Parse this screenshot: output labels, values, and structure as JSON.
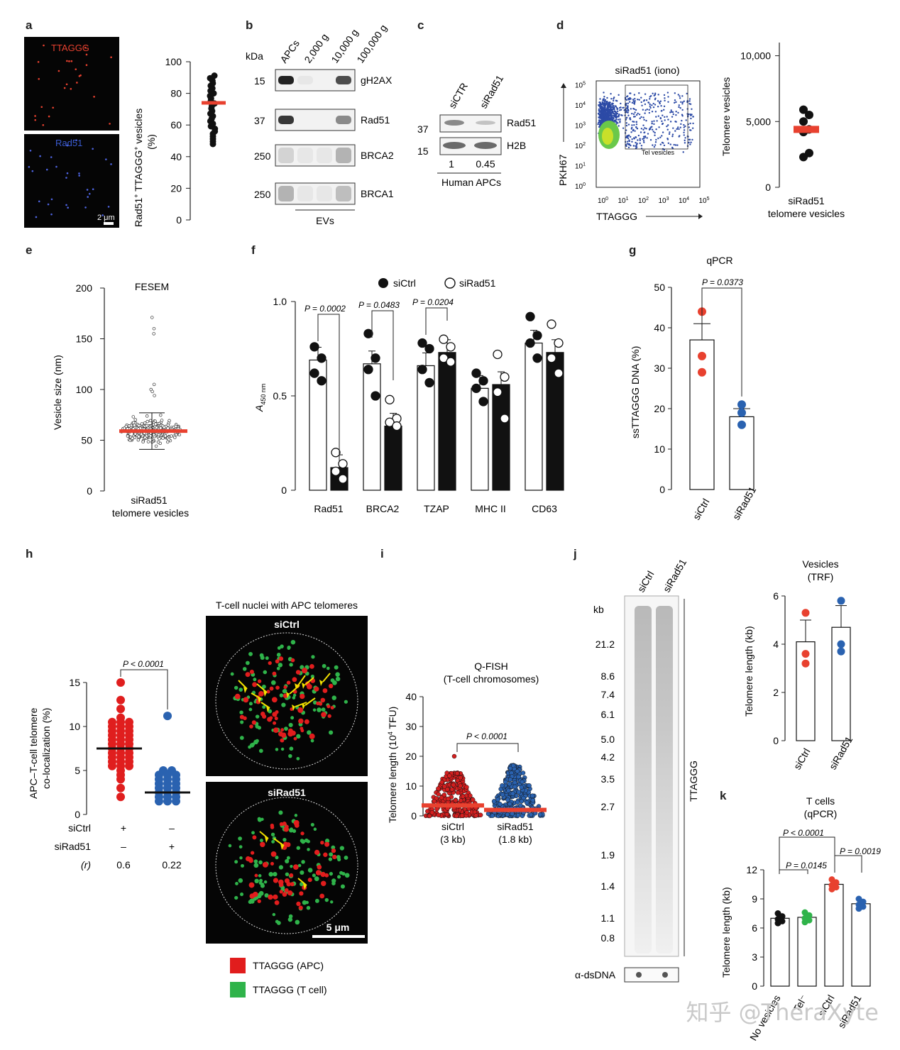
{
  "panel_labels": {
    "a": "a",
    "b": "b",
    "c": "c",
    "d": "d",
    "e": "e",
    "f": "f",
    "g": "g",
    "h": "h",
    "i": "i",
    "j": "j",
    "k": "k"
  },
  "a": {
    "img_top_label": "TTAGGG",
    "img_bottom_label": "Rad51",
    "scale": "2 μm",
    "ylabel_main": "Rad51",
    "ylabel_sup": "+",
    "ylabel_rest": " TTAGGG",
    "ylabel_sup2": "+",
    "ylabel_end": " vesicles",
    "ylabel_unit": "(%)",
    "ticks": [
      "0",
      "20",
      "40",
      "60",
      "80",
      "100"
    ]
  },
  "b": {
    "kda": "kDa",
    "lanes": [
      "APCs",
      "2,000 g",
      "10,000 g",
      "100,000 g"
    ],
    "blots": [
      {
        "mw": "15",
        "name": "gH2AX"
      },
      {
        "mw": "37",
        "name": "Rad51"
      },
      {
        "mw": "250",
        "name": "BRCA2"
      },
      {
        "mw": "250",
        "name": "BRCA1"
      }
    ],
    "footer": "EVs"
  },
  "c": {
    "lanes": [
      "siCTR",
      "siRad51"
    ],
    "blots": [
      {
        "mw": "37",
        "name": "Rad51"
      },
      {
        "mw": "15",
        "name": "H2B"
      }
    ],
    "quant": [
      "1",
      "0.45"
    ],
    "footer": "Human APCs"
  },
  "d": {
    "title": "siRad51 (iono)",
    "gate": "Tel vesicles",
    "xlabel": "TTAGGG",
    "ylabel": "PKH67",
    "exp_ticks": [
      "0",
      "1",
      "2",
      "3",
      "4",
      "5"
    ],
    "plot_ylabel": "Telomere vesicles",
    "plot_ticks": [
      "0",
      "5,000",
      "10,000"
    ],
    "plot_x1": "siRad51",
    "plot_x2": "telomere vesicles"
  },
  "e": {
    "title": "FESEM",
    "ylabel": "Vesicle size (nm)",
    "ticks": [
      "0",
      "50",
      "100",
      "150",
      "200"
    ],
    "x1": "siRad51",
    "x2": "telomere vesicles"
  },
  "f": {
    "legend": [
      "siCtrl",
      "siRad51"
    ],
    "ylabel_main": "A",
    "ylabel_sub": "450 nm",
    "ticks": [
      "0",
      "0.5",
      "1.0"
    ],
    "pvalues": [
      "P = 0.0002",
      "P = 0.0483",
      "P = 0.0204"
    ]
  },
  "g": {
    "title": "qPCR",
    "ylabel": "ssTTAGGG DNA (%)",
    "ticks": [
      "0",
      "10",
      "20",
      "30",
      "40",
      "50"
    ],
    "pvalue": "P = 0.0373"
  },
  "h": {
    "ylabel1": "APC–T-cell telomere",
    "ylabel2": "co-localization (%)",
    "ticks": [
      "0",
      "5",
      "10",
      "15"
    ],
    "pvalue": "P < 0.0001",
    "rows": [
      {
        "label": "siCtrl",
        "v1": "+",
        "v2": "–"
      },
      {
        "label": "siRad51",
        "v1": "–",
        "v2": "+"
      },
      {
        "label": "(r)",
        "v1": "0.6",
        "v2": "0.22"
      }
    ],
    "img_title": "T-cell nuclei with APC telomeres",
    "img1": "siCtrl",
    "img2": "siRad51",
    "scale": "5 μm",
    "legend": [
      "TTAGGG (APC)",
      "TTAGGG (T cell)"
    ]
  },
  "i": {
    "title1": "Q-FISH",
    "title2": "(T-cell chromosomes)",
    "ylabel_main": "Telomere length (10",
    "ylabel_sup": "4",
    "ylabel_end": " TFU)",
    "ticks": [
      "0",
      "10",
      "20",
      "30",
      "40"
    ],
    "pvalue": "P < 0.0001",
    "groups": [
      {
        "name": "siCtrl",
        "sub": "(3 kb)"
      },
      {
        "name": "siRad51",
        "sub": "(1.8 kb)"
      }
    ]
  },
  "j": {
    "lanes": [
      "siCtrl",
      "siRad51"
    ],
    "kb": "kb",
    "markers": [
      "21.2",
      "8.6",
      "7.4",
      "6.1",
      "5.0",
      "4.2",
      "3.5",
      "2.7",
      "1.9",
      "1.4",
      "1.1",
      "0.8"
    ],
    "probe": "TTAGGG",
    "loading": "α-dsDNA",
    "trf_title1": "Vesicles",
    "trf_title2": "(TRF)",
    "trf_ylabel": "Telomere length (kb)",
    "trf_ticks": [
      "0",
      "2",
      "4",
      "6"
    ],
    "trf_x": [
      "siCtrl",
      "siRad51"
    ]
  },
  "k": {
    "title1": "T cells",
    "title2": "(qPCR)",
    "ylabel": "Telomere length (kb)",
    "ticks": [
      "0",
      "3",
      "6",
      "9",
      "12"
    ],
    "pvalues": [
      "P < 0.0001",
      "P = 0.0145",
      "P = 0.0019"
    ],
    "x": [
      "No vesicles",
      "Tel⁻",
      "siCtrl",
      "siRad51"
    ]
  },
  "watermark": "知乎 @TheraXyte",
  "colors": {
    "red": "#e8412f",
    "blue": "#2a62b0",
    "green": "#2fb34a",
    "yellow": "#f2e100",
    "black": "#111111"
  },
  "chart_data": [
    {
      "panel": "a",
      "type": "scatter",
      "ylabel": "Rad51+ TTAGGG+ vesicles (%)",
      "ylim": [
        0,
        100
      ],
      "mean": 74,
      "range": [
        48,
        92
      ]
    },
    {
      "panel": "e",
      "type": "scatter",
      "title": "FESEM",
      "ylabel": "Vesicle size (nm)",
      "ylim": [
        0,
        200
      ],
      "mean": 59,
      "sd_low": 41,
      "sd_high": 77,
      "max": 171
    },
    {
      "panel": "f",
      "type": "bar",
      "ylabel": "A450 nm",
      "ylim": [
        0,
        1.0
      ],
      "categories": [
        "Rad51",
        "BRCA2",
        "TZAP",
        "MHC II",
        "CD63"
      ],
      "series": [
        {
          "name": "siCtrl",
          "values": [
            0.69,
            0.67,
            0.66,
            0.54,
            0.78
          ]
        },
        {
          "name": "siRad51",
          "values": [
            0.12,
            0.34,
            0.73,
            0.56,
            0.73
          ]
        }
      ]
    },
    {
      "panel": "g",
      "type": "bar",
      "title": "qPCR",
      "ylabel": "ssTTAGGG DNA (%)",
      "ylim": [
        0,
        50
      ],
      "categories": [
        "siCtrl",
        "siRad51"
      ],
      "values": [
        37,
        18
      ]
    },
    {
      "panel": "h",
      "type": "scatter",
      "ylabel": "APC–T-cell telomere co-localization (%)",
      "ylim": [
        0,
        15
      ],
      "categories": [
        "siCtrl",
        "siRad51"
      ],
      "means": [
        7.5,
        2.5
      ]
    },
    {
      "panel": "i",
      "type": "scatter",
      "ylabel": "Telomere length (10^4 TFU)",
      "ylim": [
        0,
        40
      ],
      "categories": [
        "siCtrl (3 kb)",
        "siRad51 (1.8 kb)"
      ],
      "means": [
        3.5,
        2
      ]
    },
    {
      "panel": "j",
      "type": "bar",
      "ylabel": "Telomere length (kb)",
      "ylim": [
        0,
        6
      ],
      "categories": [
        "siCtrl",
        "siRad51"
      ],
      "values": [
        4.1,
        4.7
      ]
    },
    {
      "panel": "k",
      "type": "bar",
      "ylabel": "Telomere length (kb)",
      "ylim": [
        0,
        12
      ],
      "categories": [
        "No vesicles",
        "Tel⁻",
        "siCtrl",
        "siRad51"
      ],
      "values": [
        7.0,
        7.1,
        10.5,
        8.5
      ]
    },
    {
      "panel": "d",
      "type": "scatter",
      "ylabel": "Telomere vesicles",
      "ylim": [
        0,
        11000
      ],
      "mean": 4400
    }
  ]
}
